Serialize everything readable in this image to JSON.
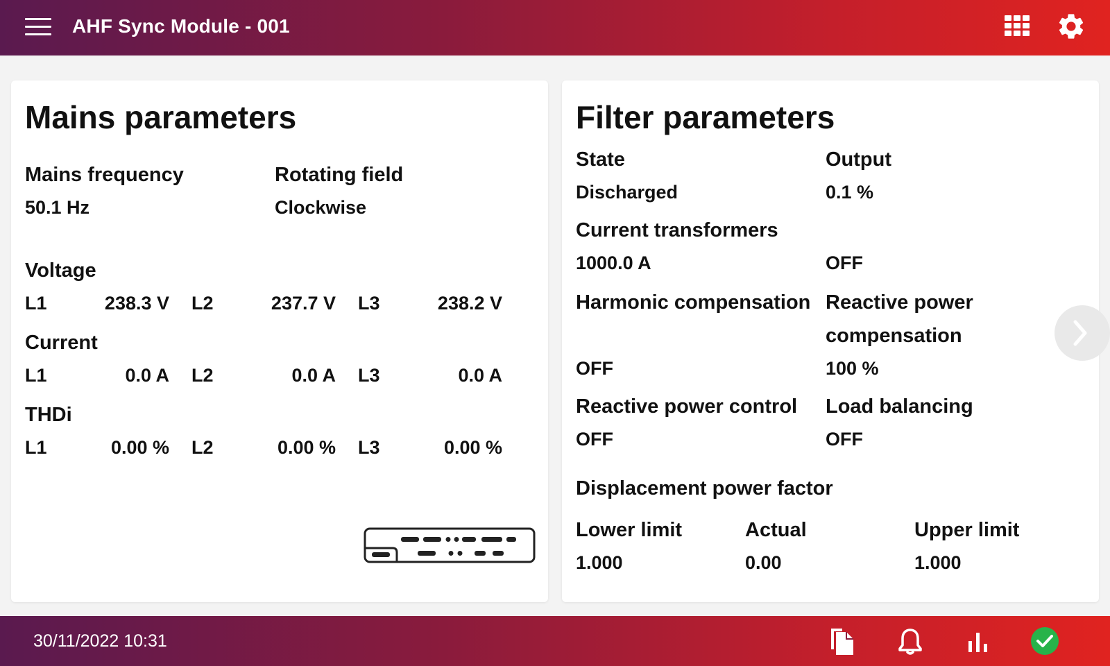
{
  "header": {
    "title": "AHF Sync Module - 001",
    "menu_icon": "menu-icon",
    "apps_icon": "grid-icon",
    "settings_icon": "gear-icon"
  },
  "mains": {
    "title": "Mains parameters",
    "frequency_label": "Mains frequency",
    "frequency_value": "50.1 Hz",
    "rotating_label": "Rotating field",
    "rotating_value": "Clockwise",
    "voltage": {
      "label": "Voltage",
      "phases": [
        {
          "name": "L1",
          "value": "238.3 V"
        },
        {
          "name": "L2",
          "value": "237.7 V"
        },
        {
          "name": "L3",
          "value": "238.2 V"
        }
      ]
    },
    "current": {
      "label": "Current",
      "phases": [
        {
          "name": "L1",
          "value": "0.0 A"
        },
        {
          "name": "L2",
          "value": "0.0 A"
        },
        {
          "name": "L3",
          "value": "0.0 A"
        }
      ]
    },
    "thdi": {
      "label": "THDi",
      "phases": [
        {
          "name": "L1",
          "value": "0.00 %"
        },
        {
          "name": "L2",
          "value": "0.00 %"
        },
        {
          "name": "L3",
          "value": "0.00 %"
        }
      ]
    }
  },
  "filter": {
    "title": "Filter parameters",
    "state_label": "State",
    "state_value": "Discharged",
    "output_label": "Output",
    "output_value": "0.1 %",
    "ct_label": "Current transformers",
    "ct_value": "1000.0 A",
    "ct_value2": "OFF",
    "harmonic_label": "Harmonic compensation",
    "harmonic_value": "OFF",
    "reactive_comp_label_1": "Reactive power",
    "reactive_comp_label_2": "compensation",
    "reactive_comp_value": "100 %",
    "reactive_ctrl_label": "Reactive power control",
    "reactive_ctrl_value": "OFF",
    "load_label": "Load balancing",
    "load_value": "OFF",
    "dpf_label": "Displacement power factor",
    "lower_label": "Lower limit",
    "lower_value": "1.000",
    "actual_label": "Actual",
    "actual_value": "0.00",
    "upper_label": "Upper limit",
    "upper_value": "1.000"
  },
  "footer": {
    "datetime": "30/11/2022 10:31",
    "icons": [
      "documents-icon",
      "bell-icon",
      "bar-chart-icon",
      "status-ok-icon"
    ],
    "status_color": "#27b34a"
  }
}
